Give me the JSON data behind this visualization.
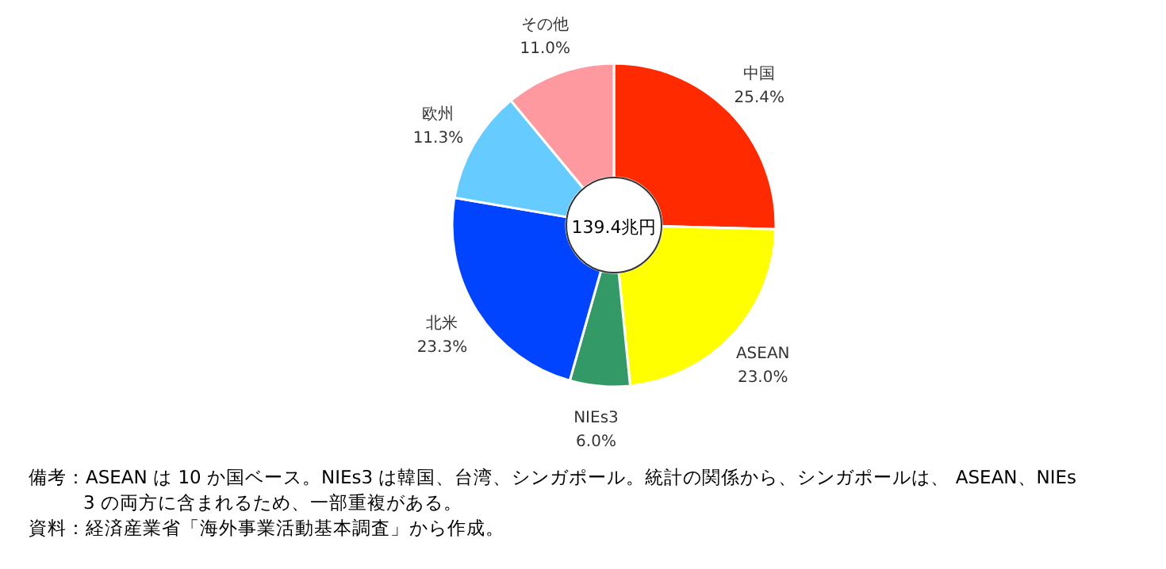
{
  "chart_data": {
    "type": "donut",
    "categories": [
      "中国",
      "ASEAN",
      "NIEs3",
      "北米",
      "欧州",
      "その他"
    ],
    "values": [
      25.4,
      23.0,
      6.0,
      23.3,
      11.3,
      11.0
    ],
    "value_labels": [
      "25.4%",
      "23.0%",
      "6.0%",
      "23.3%",
      "11.3%",
      "11.0%"
    ],
    "colors": [
      "#ff2a00",
      "#ffff00",
      "#339966",
      "#0044ff",
      "#66ccff",
      "#ff99a0"
    ],
    "annotations": [
      "139.4兆円",
      "備考：ASEAN は 10 か国ベース。NIEs3 は韓国、台湾、シンガポール。統計の関係から、シンガポールは、 ASEAN、NIEs3 の両方に含まれるため、一部重複がある。",
      "資料：経済産業省「海外事業活動基本調査」から作成。"
    ]
  }
}
